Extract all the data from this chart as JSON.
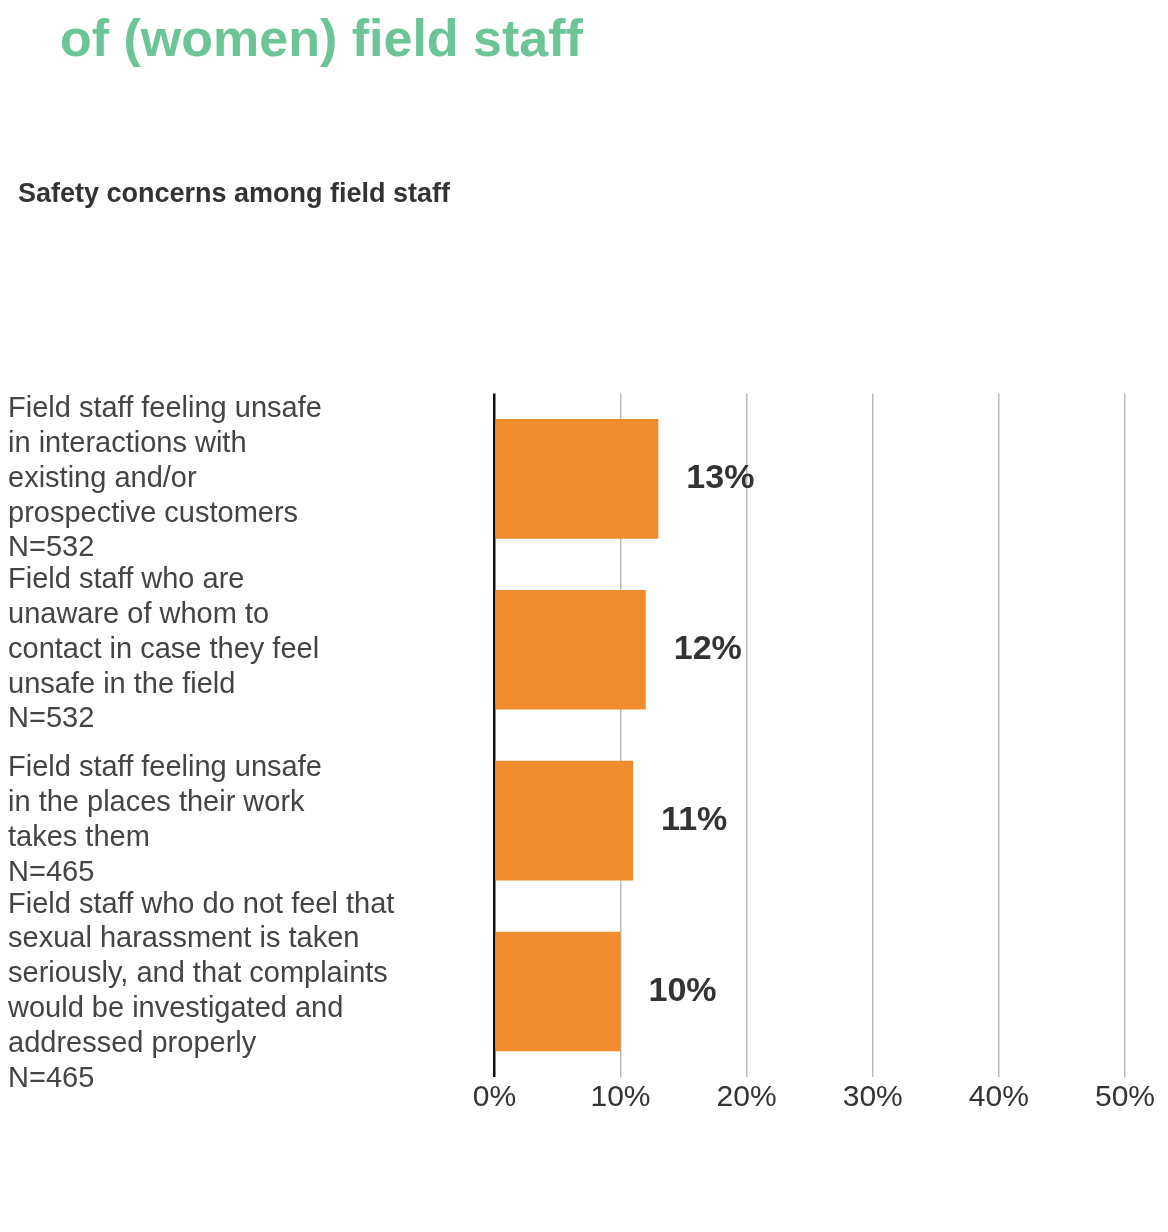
{
  "chart_data": {
    "type": "bar",
    "orientation": "horizontal",
    "title": "of (women) field staff",
    "subtitle": "Safety concerns among field staff",
    "categories": [
      "Field staff feeling unsafe\nin interactions with\nexisting and/or\nprospective customers\nN=532",
      "Field staff who are\nunaware of whom to\ncontact in case they feel\nunsafe in the field\nN=532",
      "Field staff feeling unsafe\nin the places their work\ntakes them\nN=465",
      "Field staff who do not feel that\nsexual harassment is taken\nseriously, and that complaints\nwould be investigated and\naddressed properly\nN=465"
    ],
    "values": [
      13,
      12,
      11,
      10
    ],
    "value_labels": [
      "13%",
      "12%",
      "11%",
      "10%"
    ],
    "color": "#f08c2e",
    "xlim": [
      0,
      50
    ],
    "xticks": [
      {
        "value": 0,
        "label": "0%"
      },
      {
        "value": 10,
        "label": "10%"
      },
      {
        "value": 20,
        "label": "20%"
      },
      {
        "value": 30,
        "label": "30%"
      },
      {
        "value": 40,
        "label": "40%"
      },
      {
        "value": 50,
        "label": "50%"
      }
    ],
    "grid": "x",
    "legend": false
  }
}
